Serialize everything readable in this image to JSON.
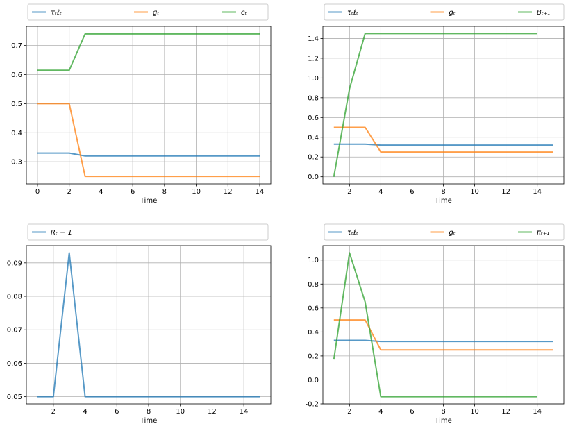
{
  "chart_data": [
    {
      "type": "line",
      "xlabel": "Time",
      "xlim": [
        -0.7,
        14.7
      ],
      "ylim": [
        0.224,
        0.766
      ],
      "xticks": [
        0,
        2,
        4,
        6,
        8,
        10,
        12,
        14
      ],
      "yticks": [
        0.3,
        0.4,
        0.5,
        0.6,
        0.7
      ],
      "grid": true,
      "legend": "top",
      "series": [
        {
          "name": "τₜℓₜ",
          "color": "#1f77b4",
          "x": [
            0,
            1,
            2,
            3,
            4,
            5,
            6,
            7,
            8,
            9,
            10,
            11,
            12,
            13,
            14
          ],
          "y": [
            0.33,
            0.33,
            0.33,
            0.32,
            0.32,
            0.32,
            0.32,
            0.32,
            0.32,
            0.32,
            0.32,
            0.32,
            0.32,
            0.32,
            0.32
          ]
        },
        {
          "name": "gₜ",
          "color": "#ff7f0e",
          "x": [
            0,
            1,
            2,
            3,
            4,
            5,
            6,
            7,
            8,
            9,
            10,
            11,
            12,
            13,
            14
          ],
          "y": [
            0.5,
            0.5,
            0.5,
            0.25,
            0.25,
            0.25,
            0.25,
            0.25,
            0.25,
            0.25,
            0.25,
            0.25,
            0.25,
            0.25,
            0.25
          ]
        },
        {
          "name": "cₜ",
          "color": "#2ca02c",
          "x": [
            0,
            1,
            2,
            3,
            4,
            5,
            6,
            7,
            8,
            9,
            10,
            11,
            12,
            13,
            14
          ],
          "y": [
            0.615,
            0.615,
            0.615,
            0.74,
            0.74,
            0.74,
            0.74,
            0.74,
            0.74,
            0.74,
            0.74,
            0.74,
            0.74,
            0.74,
            0.74
          ]
        }
      ]
    },
    {
      "type": "line",
      "xlabel": "Time",
      "xlim": [
        0.3,
        15.7
      ],
      "ylim": [
        -0.0725,
        1.5225
      ],
      "xticks": [
        2,
        4,
        6,
        8,
        10,
        12,
        14
      ],
      "yticks": [
        0.0,
        0.2,
        0.4,
        0.6,
        0.8,
        1.0,
        1.2,
        1.4
      ],
      "grid": true,
      "legend": "top",
      "series": [
        {
          "name": "τₜℓₜ",
          "color": "#1f77b4",
          "x": [
            1,
            2,
            3,
            4,
            5,
            6,
            7,
            8,
            9,
            10,
            11,
            12,
            13,
            14,
            15
          ],
          "y": [
            0.33,
            0.33,
            0.33,
            0.32,
            0.32,
            0.32,
            0.32,
            0.32,
            0.32,
            0.32,
            0.32,
            0.32,
            0.32,
            0.32,
            0.32
          ]
        },
        {
          "name": "gₜ",
          "color": "#ff7f0e",
          "x": [
            1,
            2,
            3,
            4,
            5,
            6,
            7,
            8,
            9,
            10,
            11,
            12,
            13,
            14,
            15
          ],
          "y": [
            0.5,
            0.5,
            0.5,
            0.25,
            0.25,
            0.25,
            0.25,
            0.25,
            0.25,
            0.25,
            0.25,
            0.25,
            0.25,
            0.25,
            0.25
          ]
        },
        {
          "name": "Bₜ₊₁",
          "color": "#2ca02c",
          "x": [
            1,
            2,
            3,
            4,
            5,
            6,
            7,
            8,
            9,
            10,
            11,
            12,
            13,
            14
          ],
          "y": [
            0.0,
            0.89,
            1.45,
            1.45,
            1.45,
            1.45,
            1.45,
            1.45,
            1.45,
            1.45,
            1.45,
            1.45,
            1.45,
            1.45
          ]
        }
      ]
    },
    {
      "type": "line",
      "xlabel": "Time",
      "xlim": [
        0.3,
        15.7
      ],
      "ylim": [
        0.04785,
        0.09515
      ],
      "xticks": [
        2,
        4,
        6,
        8,
        10,
        12,
        14
      ],
      "yticks": [
        0.05,
        0.06,
        0.07,
        0.08,
        0.09
      ],
      "grid": true,
      "legend": "top",
      "series": [
        {
          "name": "Rₜ − 1",
          "color": "#1f77b4",
          "x": [
            1,
            2,
            3,
            4,
            5,
            6,
            7,
            8,
            9,
            10,
            11,
            12,
            13,
            14,
            15
          ],
          "y": [
            0.05,
            0.05,
            0.093,
            0.05,
            0.05,
            0.05,
            0.05,
            0.05,
            0.05,
            0.05,
            0.05,
            0.05,
            0.05,
            0.05,
            0.05
          ]
        }
      ]
    },
    {
      "type": "line",
      "xlabel": "Time",
      "xlim": [
        0.3,
        15.7
      ],
      "ylim": [
        -0.2,
        1.12
      ],
      "xticks": [
        2,
        4,
        6,
        8,
        10,
        12,
        14
      ],
      "yticks": [
        -0.2,
        0.0,
        0.2,
        0.4,
        0.6,
        0.8,
        1.0
      ],
      "grid": true,
      "legend": "top",
      "series": [
        {
          "name": "τₜℓₜ",
          "color": "#1f77b4",
          "x": [
            1,
            2,
            3,
            4,
            5,
            6,
            7,
            8,
            9,
            10,
            11,
            12,
            13,
            14,
            15
          ],
          "y": [
            0.33,
            0.33,
            0.33,
            0.32,
            0.32,
            0.32,
            0.32,
            0.32,
            0.32,
            0.32,
            0.32,
            0.32,
            0.32,
            0.32,
            0.32
          ]
        },
        {
          "name": "gₜ",
          "color": "#ff7f0e",
          "x": [
            1,
            2,
            3,
            4,
            5,
            6,
            7,
            8,
            9,
            10,
            11,
            12,
            13,
            14,
            15
          ],
          "y": [
            0.5,
            0.5,
            0.5,
            0.25,
            0.25,
            0.25,
            0.25,
            0.25,
            0.25,
            0.25,
            0.25,
            0.25,
            0.25,
            0.25,
            0.25
          ]
        },
        {
          "name": "πₜ₊₁",
          "color": "#2ca02c",
          "x": [
            1,
            2,
            3,
            4,
            5,
            6,
            7,
            8,
            9,
            10,
            11,
            12,
            13,
            14
          ],
          "y": [
            0.17,
            1.06,
            0.65,
            -0.14,
            -0.14,
            -0.14,
            -0.14,
            -0.14,
            -0.14,
            -0.14,
            -0.14,
            -0.14,
            -0.14,
            -0.14
          ]
        }
      ]
    }
  ]
}
